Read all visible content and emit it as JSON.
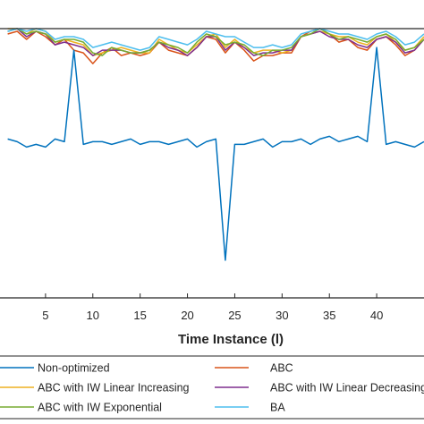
{
  "chart_data": {
    "type": "line",
    "xlabel": "Time Instance (l)",
    "ylabel": "",
    "title": "",
    "xlim": [
      0,
      45
    ],
    "ylim": [
      0,
      1
    ],
    "grid": false,
    "legend_position": "bottom",
    "x_ticks": [
      5,
      10,
      15,
      20,
      25,
      30,
      35,
      40
    ],
    "x_tick_labels": [
      "5",
      "10",
      "15",
      "20",
      "25",
      "30",
      "35",
      "40"
    ],
    "x": [
      1,
      2,
      3,
      4,
      5,
      6,
      7,
      8,
      9,
      10,
      11,
      12,
      13,
      14,
      15,
      16,
      17,
      18,
      19,
      20,
      21,
      22,
      23,
      24,
      25,
      26,
      27,
      28,
      29,
      30,
      31,
      32,
      33,
      34,
      35,
      36,
      37,
      38,
      39,
      40,
      41,
      42,
      43,
      44,
      45
    ],
    "series": [
      {
        "name": "Non-optimized",
        "color": "#0072BD",
        "values": [
          0.59,
          0.58,
          0.56,
          0.57,
          0.56,
          0.59,
          0.58,
          0.92,
          0.57,
          0.58,
          0.58,
          0.57,
          0.58,
          0.59,
          0.57,
          0.58,
          0.58,
          0.57,
          0.58,
          0.59,
          0.56,
          0.58,
          0.59,
          0.14,
          0.57,
          0.57,
          0.58,
          0.59,
          0.56,
          0.58,
          0.58,
          0.59,
          0.57,
          0.59,
          0.6,
          0.58,
          0.59,
          0.6,
          0.58,
          0.93,
          0.57,
          0.58,
          0.57,
          0.56,
          0.58
        ]
      },
      {
        "name": "ABC",
        "color": "#D95319",
        "values": [
          0.98,
          0.99,
          0.96,
          0.99,
          0.97,
          0.94,
          0.96,
          0.92,
          0.91,
          0.87,
          0.91,
          0.93,
          0.9,
          0.91,
          0.9,
          0.91,
          0.95,
          0.92,
          0.91,
          0.9,
          0.93,
          0.97,
          0.96,
          0.91,
          0.95,
          0.92,
          0.88,
          0.9,
          0.9,
          0.91,
          0.91,
          0.97,
          0.99,
          1.0,
          0.98,
          0.95,
          0.96,
          0.93,
          0.92,
          0.96,
          0.97,
          0.94,
          0.9,
          0.92,
          0.96
        ]
      },
      {
        "name": "ABC with IW Linear Increasing",
        "color": "#EDB120",
        "values": [
          1.0,
          1.0,
          0.98,
          1.0,
          0.99,
          0.95,
          0.96,
          0.95,
          0.94,
          0.9,
          0.91,
          0.92,
          0.93,
          0.92,
          0.91,
          0.91,
          0.96,
          0.94,
          0.92,
          0.91,
          0.94,
          0.97,
          0.98,
          0.93,
          0.96,
          0.93,
          0.91,
          0.92,
          0.92,
          0.91,
          0.92,
          0.97,
          0.98,
          0.99,
          0.98,
          0.97,
          0.97,
          0.95,
          0.94,
          0.97,
          0.98,
          0.95,
          0.92,
          0.93,
          0.97
        ]
      },
      {
        "name": "ABC with IW Linear Decreasing",
        "color": "#7E2F8E",
        "values": [
          0.99,
          1.0,
          0.97,
          0.99,
          0.98,
          0.94,
          0.95,
          0.94,
          0.93,
          0.9,
          0.92,
          0.92,
          0.92,
          0.91,
          0.91,
          0.92,
          0.95,
          0.93,
          0.92,
          0.9,
          0.93,
          0.97,
          0.97,
          0.92,
          0.95,
          0.93,
          0.9,
          0.91,
          0.91,
          0.92,
          0.92,
          0.97,
          0.98,
          0.99,
          0.97,
          0.96,
          0.96,
          0.94,
          0.93,
          0.96,
          0.97,
          0.95,
          0.91,
          0.92,
          0.96
        ]
      },
      {
        "name": "ABC with IW Exponential",
        "color": "#77AC30",
        "values": [
          0.99,
          1.0,
          0.98,
          0.99,
          0.98,
          0.95,
          0.96,
          0.96,
          0.95,
          0.91,
          0.9,
          0.93,
          0.92,
          0.91,
          0.91,
          0.92,
          0.95,
          0.94,
          0.93,
          0.91,
          0.95,
          0.98,
          0.97,
          0.94,
          0.95,
          0.94,
          0.91,
          0.9,
          0.92,
          0.92,
          0.93,
          0.97,
          0.98,
          1.0,
          0.98,
          0.96,
          0.97,
          0.96,
          0.95,
          0.97,
          0.98,
          0.96,
          0.92,
          0.93,
          0.96
        ]
      },
      {
        "name": "BA",
        "color": "#4DBEEE",
        "values": [
          0.99,
          1.0,
          0.99,
          1.0,
          0.99,
          0.96,
          0.97,
          0.97,
          0.96,
          0.93,
          0.94,
          0.95,
          0.94,
          0.93,
          0.92,
          0.93,
          0.97,
          0.96,
          0.95,
          0.94,
          0.96,
          0.99,
          0.98,
          0.97,
          0.97,
          0.95,
          0.93,
          0.93,
          0.94,
          0.93,
          0.94,
          0.98,
          0.99,
          1.0,
          0.99,
          0.98,
          0.98,
          0.97,
          0.96,
          0.98,
          0.99,
          0.97,
          0.94,
          0.95,
          0.98
        ]
      }
    ]
  }
}
